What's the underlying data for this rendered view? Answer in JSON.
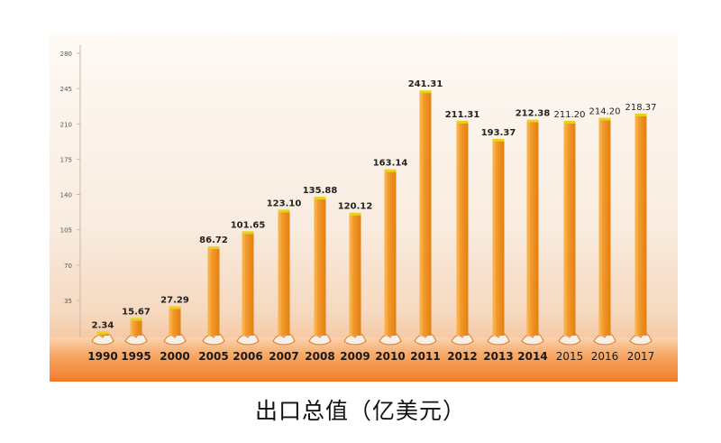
{
  "chart_data": {
    "type": "bar",
    "title": "出口总值（亿美元）",
    "categories": [
      "1990",
      "1995",
      "2000",
      "2005",
      "2006",
      "2007",
      "2008",
      "2009",
      "2010",
      "2011",
      "2012",
      "2013",
      "2014",
      "2015",
      "2016",
      "2017"
    ],
    "values": [
      2.34,
      15.67,
      27.29,
      86.72,
      101.65,
      123.1,
      135.88,
      120.12,
      163.14,
      241.31,
      211.31,
      193.37,
      212.38,
      211.2,
      214.2,
      218.37
    ],
    "value_labels": [
      "2.34",
      "15.67",
      "27.29",
      "86.72",
      "101.65",
      "123.10",
      "135.88",
      "120.12",
      "163.14",
      "241.31",
      "211.31",
      "193.37",
      "212.38",
      "211.20",
      "214.20",
      "218.37"
    ],
    "y_ticks": [
      "35",
      "70",
      "105",
      "140",
      "175",
      "210",
      "245",
      "280"
    ],
    "ylim": [
      0,
      280
    ],
    "grid": false,
    "colors": {
      "bar": "#f0901e",
      "bar_side": "#f9b24a",
      "bar_cap": "#e8d21a",
      "background_band": "#f7a35c"
    }
  }
}
